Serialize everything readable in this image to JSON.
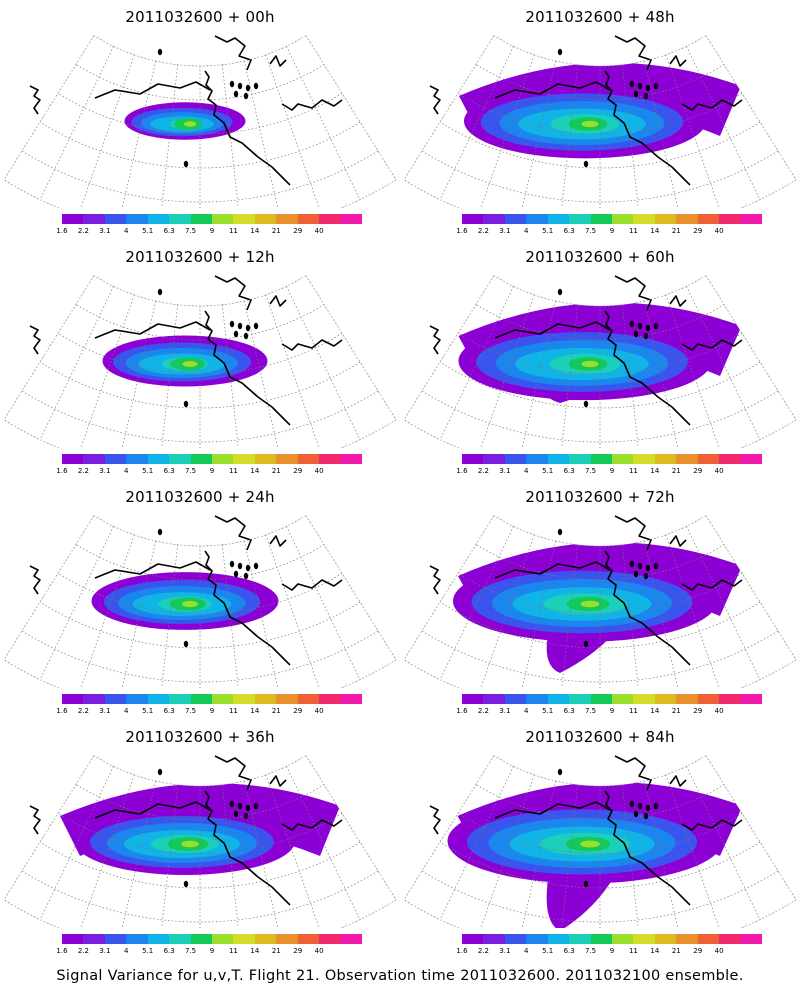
{
  "panels": [
    {
      "title": "2011032600 + 00h",
      "spread": 0.55,
      "intensity": 0.35,
      "north": false,
      "tongue": 0
    },
    {
      "title": "2011032600 + 12h",
      "spread": 0.75,
      "intensity": 0.5,
      "north": false,
      "tongue": 0
    },
    {
      "title": "2011032600 + 24h",
      "spread": 0.85,
      "intensity": 0.55,
      "north": false,
      "tongue": 0
    },
    {
      "title": "2011032600 + 36h",
      "spread": 1.0,
      "intensity": 0.65,
      "north": true,
      "tongue": 0
    },
    {
      "title": "2011032600 + 48h",
      "spread": 1.1,
      "intensity": 0.6,
      "north": true,
      "tongue": 0
    },
    {
      "title": "2011032600 + 60h",
      "spread": 1.15,
      "intensity": 0.6,
      "north": true,
      "tongue": 0.2
    },
    {
      "title": "2011032600 + 72h",
      "spread": 1.2,
      "intensity": 0.7,
      "north": true,
      "tongue": 0.7
    },
    {
      "title": "2011032600 + 84h",
      "spread": 1.25,
      "intensity": 0.75,
      "north": true,
      "tongue": 1.0
    }
  ],
  "colorbar": {
    "colors": [
      "#8c00d6",
      "#7a1fe0",
      "#3a55ee",
      "#1a86ee",
      "#11b4e6",
      "#1ccfb8",
      "#14c85a",
      "#9ae02a",
      "#d6dc28",
      "#e0b822",
      "#e8902a",
      "#f06038",
      "#ee2a6c",
      "#f01aa8"
    ],
    "ticks": [
      "1.6",
      "2.2",
      "3.1",
      "4",
      "5.1",
      "6.3",
      "7.5",
      "9",
      "11",
      "14",
      "21",
      "29",
      "40"
    ]
  },
  "footer": "Signal Variance for u,v,T. Flight 21. Observation time 2011032600. 2011032100 ensemble."
}
